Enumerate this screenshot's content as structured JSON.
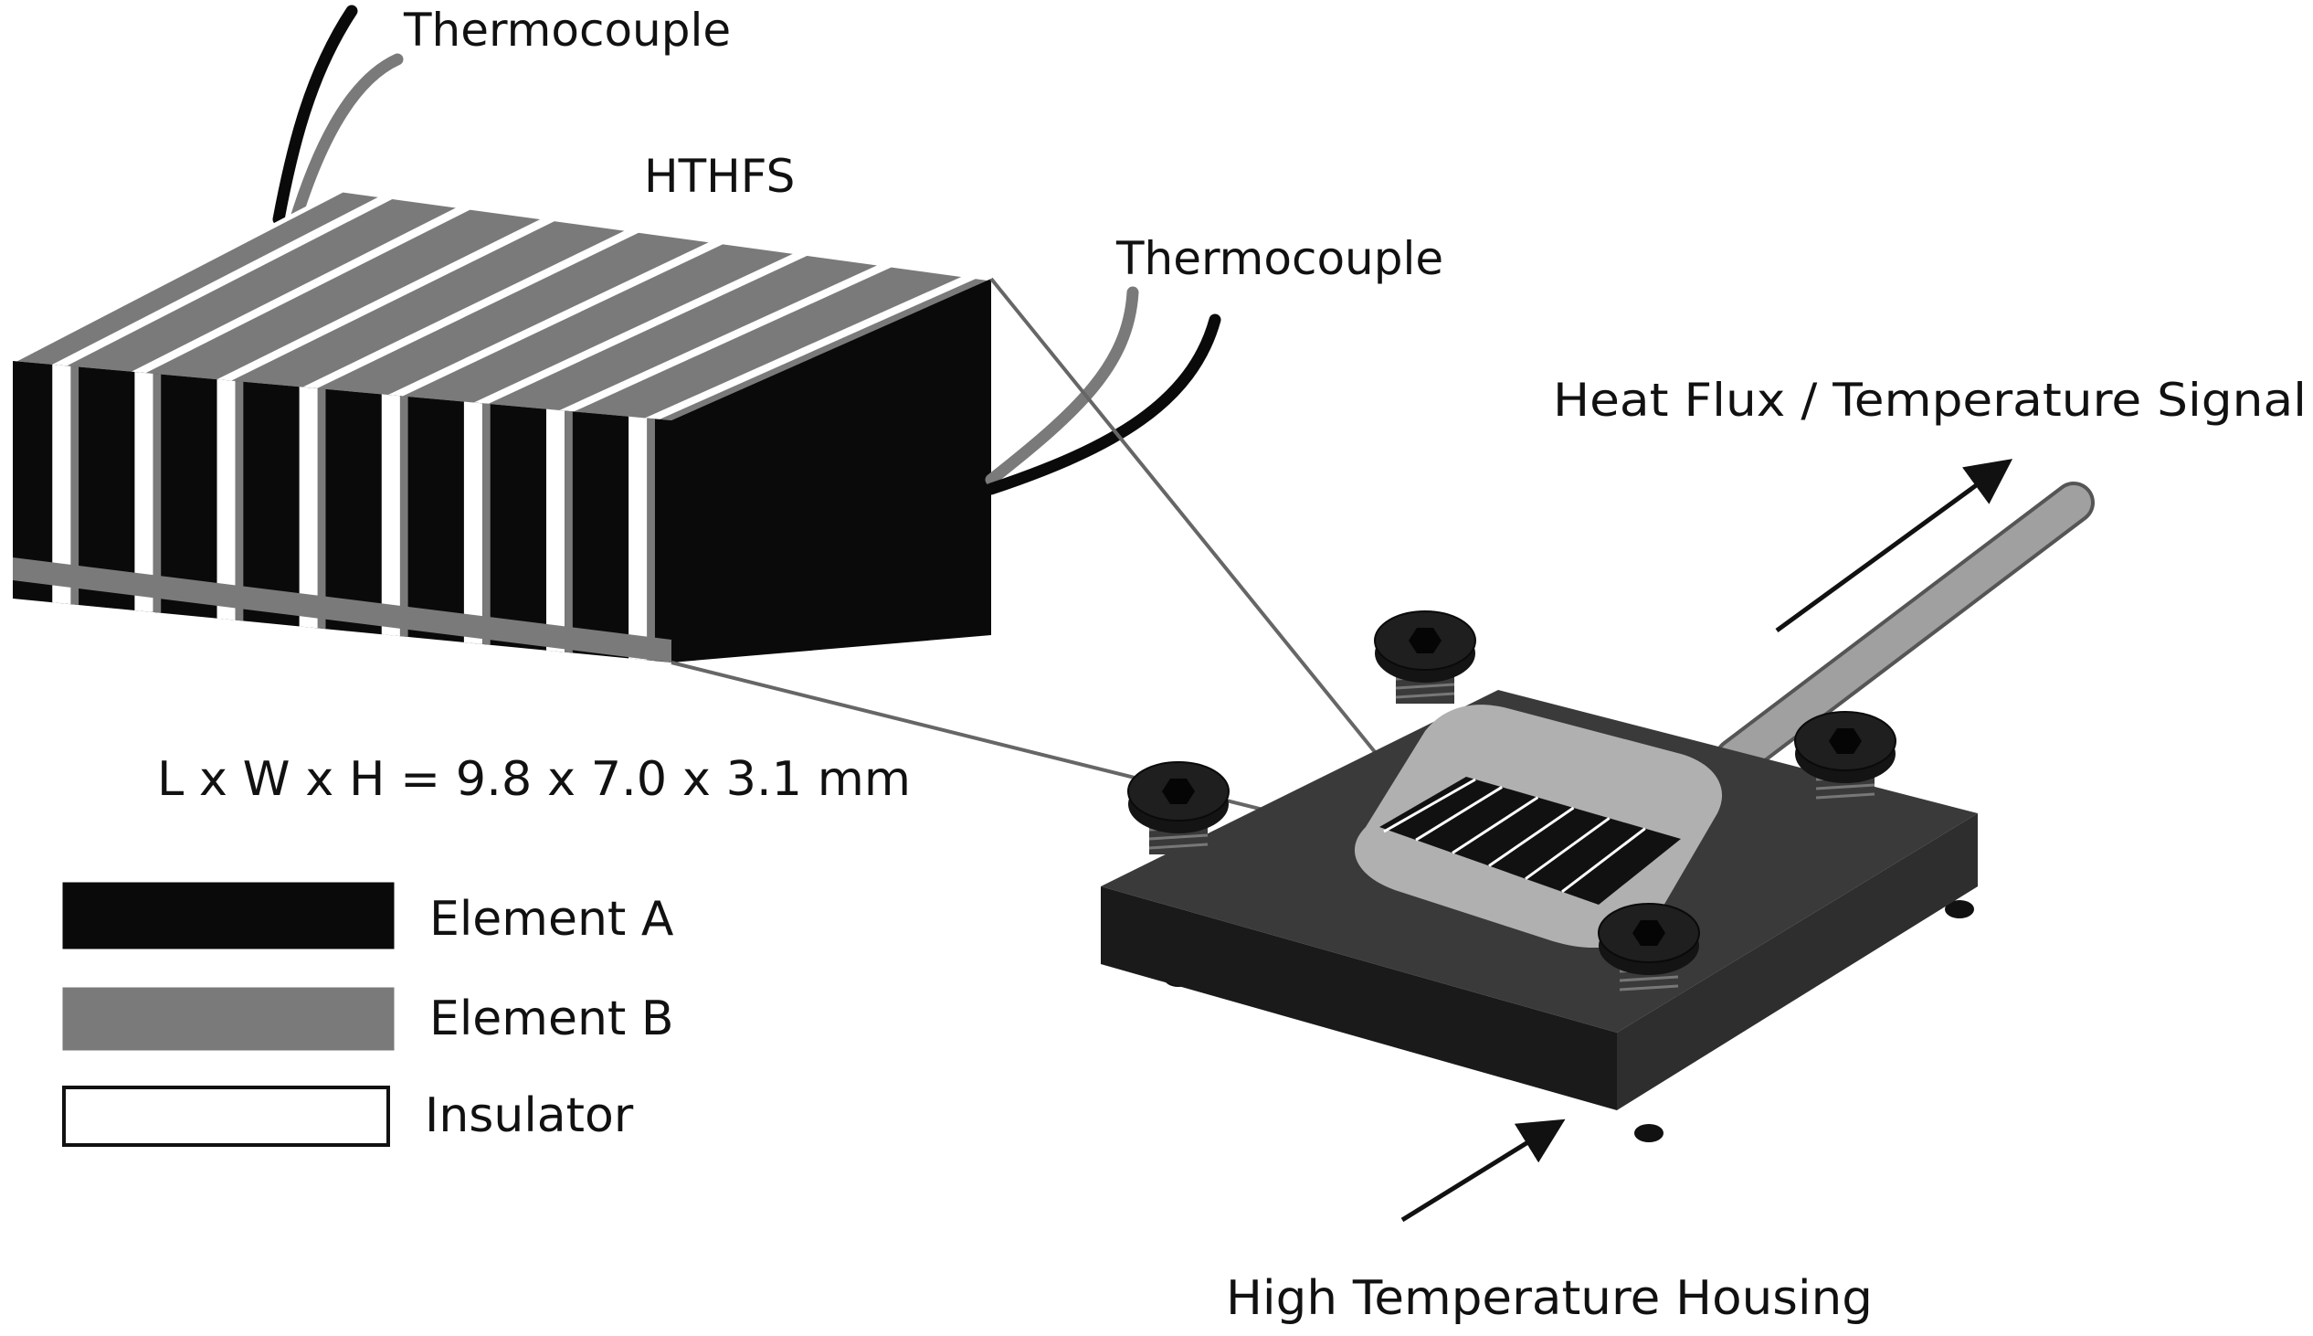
{
  "labels": {
    "thermocouple_top": "Thermocouple",
    "thermocouple_right": "Thermocouple",
    "sensor_name": "HTHFS",
    "dimensions": "L x W x H = 9.8 x 7.0 x 3.1 mm",
    "signal": "Heat Flux / Temperature Signal",
    "housing": "High Temperature Housing"
  },
  "legend": [
    {
      "label": "Element A",
      "color": "#0a0a0a"
    },
    {
      "label": "Element B",
      "color": "#7a7a7a"
    },
    {
      "label": "Insulator",
      "color": "#ffffff"
    }
  ],
  "colors": {
    "element_a": "#0a0a0a",
    "element_b": "#7a7a7a",
    "insulator": "#ffffff",
    "housing": "#262626",
    "rod": "#9a9a9a"
  }
}
